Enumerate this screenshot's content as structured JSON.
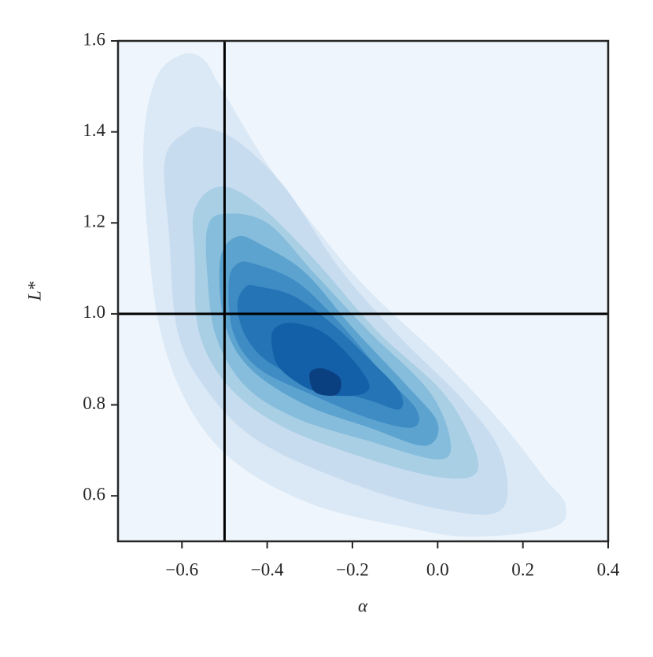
{
  "chart_data": {
    "type": "contour",
    "xlabel": "α",
    "ylabel": "L*",
    "xlim": [
      -0.75,
      0.4
    ],
    "ylim": [
      0.5,
      1.6
    ],
    "xticks": [
      {
        "value": -0.6,
        "label": "−0.6"
      },
      {
        "value": -0.4,
        "label": "−0.4"
      },
      {
        "value": -0.2,
        "label": "−0.2"
      },
      {
        "value": 0.0,
        "label": "0.0"
      },
      0.2,
      0.4
    ],
    "yticks": [
      0.6,
      0.8,
      {
        "value": 1.0,
        "label": "1.0"
      },
      1.2,
      1.4,
      1.6
    ],
    "plot_background": "#eef5fc",
    "vlines": [
      -0.5
    ],
    "hlines": [
      1.0
    ],
    "line_color": "#000000",
    "series": [
      {
        "color": "#dbe9f6",
        "x": [
          -0.6,
          -0.66,
          -0.69,
          -0.68,
          -0.65,
          -0.58,
          -0.47,
          -0.29,
          -0.07,
          0.08,
          0.27,
          0.3,
          0.25,
          0.15,
          0.01,
          -0.16,
          -0.27,
          -0.4,
          -0.51,
          -0.55
        ],
        "y": [
          1.57,
          1.52,
          1.38,
          1.17,
          0.96,
          0.79,
          0.67,
          0.58,
          0.53,
          0.51,
          0.53,
          0.58,
          0.64,
          0.76,
          0.9,
          1.05,
          1.17,
          1.33,
          1.5,
          1.56
        ]
      },
      {
        "color": "#c8dcf0",
        "x": [
          -0.59,
          -0.64,
          -0.63,
          -0.61,
          -0.54,
          -0.42,
          -0.21,
          0.01,
          0.15,
          0.15,
          0.06,
          -0.09,
          -0.23,
          -0.36,
          -0.47,
          -0.55
        ],
        "y": [
          1.4,
          1.34,
          1.17,
          0.96,
          0.83,
          0.72,
          0.63,
          0.57,
          0.57,
          0.69,
          0.81,
          0.95,
          1.1,
          1.28,
          1.38,
          1.41
        ]
      },
      {
        "color": "#a9cfe5",
        "x": [
          -0.51,
          -0.57,
          -0.57,
          -0.56,
          -0.49,
          -0.36,
          -0.16,
          0.01,
          0.09,
          0.08,
          0.01,
          -0.14,
          -0.29,
          -0.42
        ],
        "y": [
          1.28,
          1.23,
          1.12,
          0.96,
          0.84,
          0.75,
          0.68,
          0.64,
          0.65,
          0.72,
          0.83,
          0.96,
          1.12,
          1.24
        ]
      },
      {
        "color": "#86bddc",
        "x": [
          -0.5,
          -0.54,
          -0.54,
          -0.52,
          -0.45,
          -0.33,
          -0.16,
          0.0,
          0.03,
          -0.02,
          -0.16,
          -0.29,
          -0.4
        ],
        "y": [
          1.22,
          1.19,
          1.08,
          0.95,
          0.84,
          0.77,
          0.72,
          0.68,
          0.72,
          0.83,
          0.96,
          1.09,
          1.2
        ]
      },
      {
        "color": "#5ca3d0",
        "x": [
          -0.47,
          -0.51,
          -0.5,
          -0.44,
          -0.31,
          -0.16,
          -0.03,
          0.0,
          -0.07,
          -0.2,
          -0.31,
          -0.41
        ],
        "y": [
          1.17,
          1.12,
          0.98,
          0.88,
          0.8,
          0.75,
          0.71,
          0.76,
          0.84,
          0.97,
          1.09,
          1.15
        ]
      },
      {
        "color": "#3f8cc4",
        "x": [
          -0.47,
          -0.49,
          -0.48,
          -0.42,
          -0.29,
          -0.16,
          -0.06,
          -0.05,
          -0.13,
          -0.23,
          -0.33,
          -0.43
        ],
        "y": [
          1.11,
          1.07,
          0.96,
          0.88,
          0.82,
          0.77,
          0.75,
          0.79,
          0.87,
          0.98,
          1.07,
          1.11
        ]
      },
      {
        "color": "#2474b6",
        "x": [
          -0.45,
          -0.47,
          -0.45,
          -0.39,
          -0.27,
          -0.16,
          -0.09,
          -0.09,
          -0.16,
          -0.25,
          -0.34,
          -0.42
        ],
        "y": [
          1.06,
          1.02,
          0.95,
          0.89,
          0.84,
          0.81,
          0.79,
          0.83,
          0.9,
          0.98,
          1.04,
          1.06
        ]
      },
      {
        "color": "#1460a8",
        "x": [
          -0.38,
          -0.39,
          -0.37,
          -0.29,
          -0.2,
          -0.16,
          -0.2,
          -0.27,
          -0.34
        ],
        "y": [
          0.97,
          0.94,
          0.88,
          0.83,
          0.82,
          0.84,
          0.9,
          0.96,
          0.98
        ]
      },
      {
        "color": "#0a3f80",
        "x": [
          -0.3,
          -0.29,
          -0.25,
          -0.23,
          -0.23,
          -0.27
        ],
        "y": [
          0.87,
          0.83,
          0.82,
          0.83,
          0.86,
          0.88
        ]
      }
    ]
  }
}
